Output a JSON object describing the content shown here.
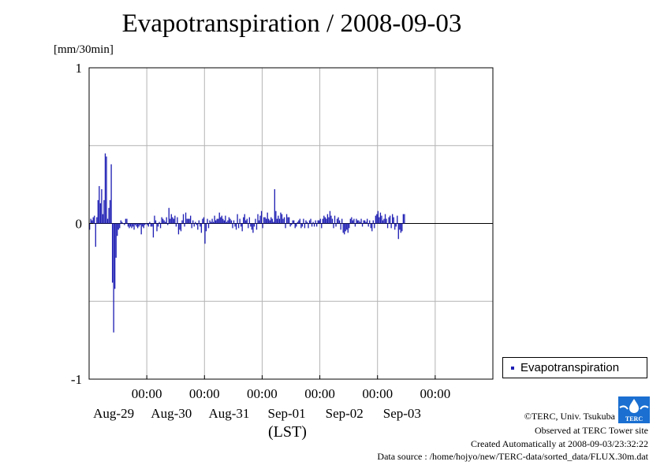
{
  "title": "Evapotranspiration / 2008-09-03",
  "unit_label": "[mm/30min]",
  "x_unit_label": "(LST)",
  "legend_label": "Evapotranspiration",
  "footer": {
    "copyright": "©TERC, Univ. Tsukuba",
    "observed": "Observed at TERC Tower site",
    "created": "Created Automatically at 2008-09-03/23:32:22",
    "source": "Data source : /home/hojyo/new/TERC-data/sorted_data/FLUX.30m.dat"
  },
  "logo_text": "TERC",
  "colors": {
    "bar": "#1e1eb4",
    "grid": "#b4b4b4",
    "axis": "#000000"
  },
  "chart_data": {
    "type": "bar",
    "title": "Evapotranspiration / 2008-09-03",
    "ylabel": "[mm/30min]",
    "xlabel": "(LST)",
    "ylim": [
      -1,
      1
    ],
    "yticks": [
      -1,
      0,
      1
    ],
    "xlim_days": [
      "2008-08-28",
      "2008-09-04"
    ],
    "xticks": [
      {
        "date": "2008-08-29",
        "time": "00:00",
        "day": "Aug-29"
      },
      {
        "date": "2008-08-30",
        "time": "00:00",
        "day": "Aug-30"
      },
      {
        "date": "2008-08-31",
        "time": "00:00",
        "day": "Aug-31"
      },
      {
        "date": "2008-09-01",
        "time": "00:00",
        "day": "Sep-01"
      },
      {
        "date": "2008-09-02",
        "time": "00:00",
        "day": "Sep-02"
      },
      {
        "date": "2008-09-03",
        "time": "00:00",
        "day": "Sep-03"
      }
    ],
    "grid": true,
    "legend_position": "bottom-right, outside plot",
    "series": [
      {
        "name": "Evapotranspiration",
        "interval": "30min",
        "start": "2008-08-28 00:00",
        "values": [
          -0.04,
          0.03,
          0.02,
          0.04,
          0.05,
          -0.15,
          0.04,
          0.15,
          0.24,
          0.13,
          0.22,
          0.06,
          0.15,
          0.45,
          0.43,
          0.03,
          0.1,
          0.15,
          0.38,
          -0.38,
          -0.7,
          -0.42,
          -0.22,
          -0.08,
          -0.04,
          -0.03,
          0.02,
          0.01,
          0.0,
          -0.01,
          0.03,
          0.03,
          -0.02,
          -0.03,
          -0.02,
          -0.03,
          -0.02,
          -0.04,
          -0.01,
          -0.02,
          -0.03,
          -0.02,
          -0.01,
          -0.07,
          -0.02,
          -0.03,
          -0.01,
          0.0,
          -0.01,
          -0.02,
          0.01,
          -0.02,
          -0.02,
          -0.09,
          0.05,
          0.02,
          -0.05,
          -0.02,
          0.01,
          -0.03,
          0.04,
          0.03,
          0.02,
          0.01,
          0.04,
          -0.01,
          0.1,
          0.03,
          0.06,
          0.04,
          0.03,
          0.05,
          -0.02,
          0.04,
          -0.07,
          -0.04,
          -0.05,
          0.02,
          0.06,
          -0.02,
          0.07,
          0.03,
          0.03,
          0.03,
          0.05,
          -0.03,
          0.02,
          -0.02,
          0.01,
          -0.01,
          -0.04,
          0.02,
          -0.02,
          -0.06,
          0.03,
          0.04,
          -0.13,
          -0.05,
          0.03,
          -0.03,
          0.02,
          0.01,
          0.03,
          0.01,
          0.05,
          0.02,
          0.03,
          0.03,
          0.07,
          0.04,
          0.05,
          0.03,
          0.02,
          0.05,
          0.01,
          0.02,
          0.04,
          0.03,
          0.02,
          -0.03,
          0.02,
          -0.02,
          -0.04,
          0.06,
          -0.03,
          0.03,
          -0.02,
          -0.05,
          0.04,
          0.06,
          0.02,
          0.03,
          -0.03,
          0.04,
          -0.02,
          -0.04,
          -0.06,
          -0.02,
          0.03,
          -0.04,
          0.06,
          0.02,
          0.05,
          0.08,
          -0.03,
          0.04,
          0.04,
          0.03,
          0.07,
          0.03,
          0.02,
          0.04,
          0.03,
          0.01,
          0.22,
          0.08,
          0.03,
          0.05,
          0.03,
          0.07,
          0.06,
          0.03,
          0.04,
          -0.03,
          0.06,
          0.04,
          0.04,
          -0.02,
          -0.01,
          0.02,
          0.02,
          -0.03,
          -0.02,
          0.01,
          0.02,
          0.03,
          -0.03,
          -0.02,
          0.03,
          -0.03,
          0.02,
          0.01,
          -0.03,
          0.02,
          0.03,
          -0.02,
          0.01,
          -0.02,
          0.02,
          -0.02,
          0.02,
          0.02,
          0.03,
          -0.03,
          0.03,
          0.05,
          0.04,
          0.03,
          0.06,
          0.04,
          0.08,
          0.05,
          0.03,
          -0.03,
          0.05,
          -0.02,
          0.03,
          0.04,
          0.02,
          -0.04,
          0.03,
          -0.06,
          -0.07,
          -0.05,
          -0.04,
          -0.06,
          -0.03,
          0.03,
          0.04,
          0.02,
          0.03,
          -0.02,
          0.03,
          0.02,
          0.02,
          0.01,
          0.03,
          -0.02,
          0.02,
          0.02,
          0.01,
          0.03,
          -0.02,
          0.02,
          -0.03,
          -0.05,
          0.02,
          -0.03,
          0.05,
          0.06,
          0.08,
          0.04,
          0.07,
          0.05,
          0.02,
          0.03,
          0.06,
          0.03,
          -0.03,
          0.04,
          0.05,
          -0.03,
          0.06,
          0.04,
          -0.04,
          -0.02,
          0.05,
          -0.1,
          -0.04,
          -0.06,
          -0.05,
          0.06,
          0.06
        ]
      }
    ]
  }
}
